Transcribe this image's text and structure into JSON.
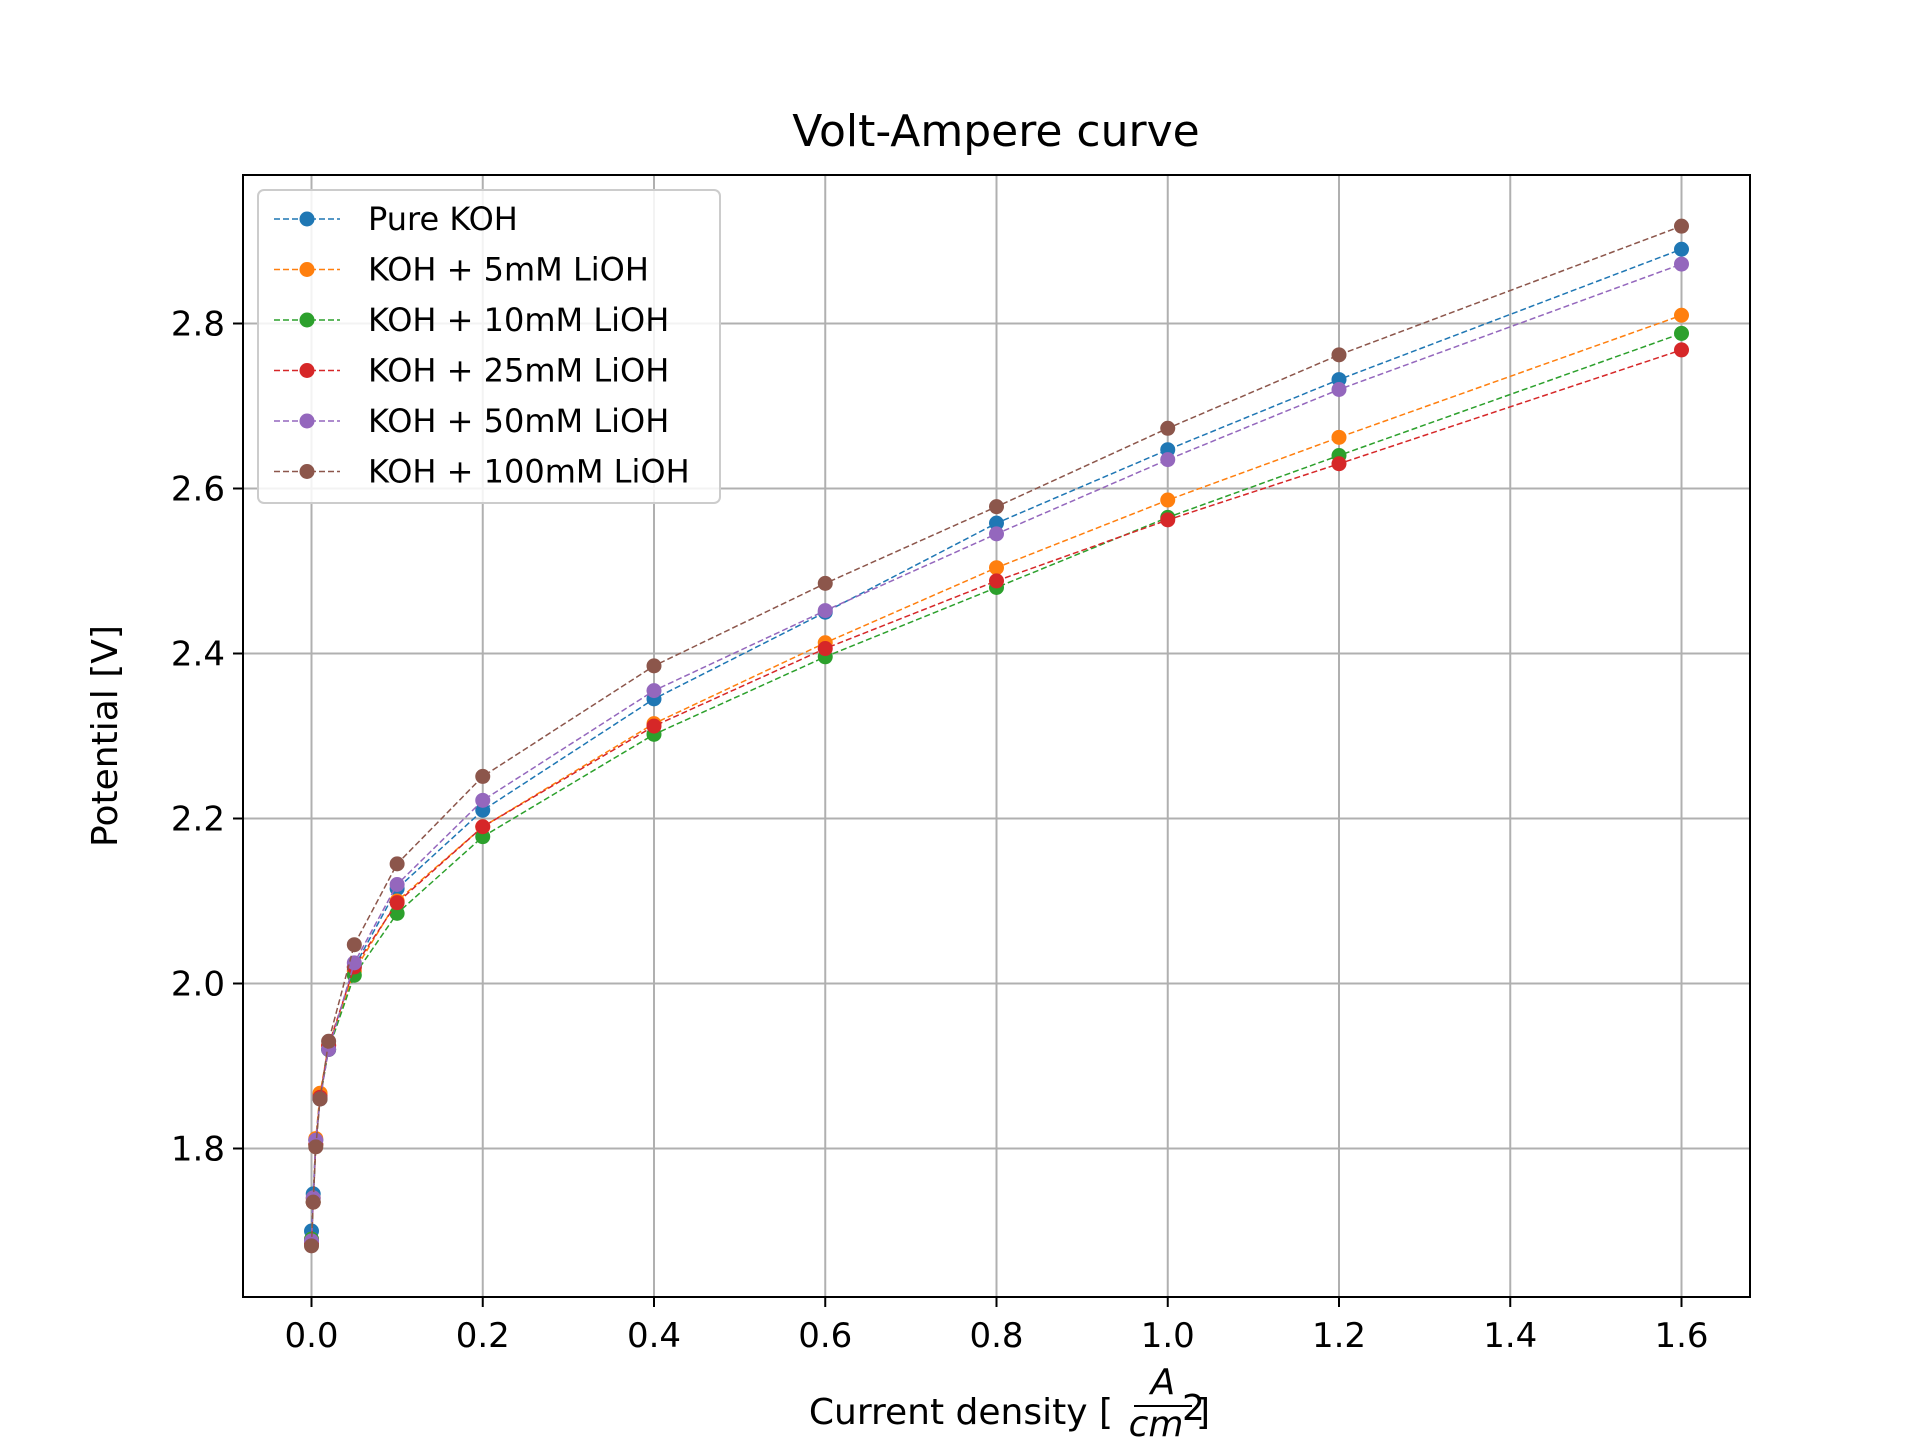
{
  "chart_data": {
    "type": "line",
    "title": "Volt-Ampere curve",
    "xlabel": "Current density [",
    "xlabel_frac_num": "A",
    "xlabel_frac_den": "cm",
    "xlabel_frac_sup": "2",
    "xlabel_close": "]",
    "ylabel": "Potential [V]",
    "xlim": [
      -0.08,
      1.68
    ],
    "ylim": [
      1.62,
      2.98
    ],
    "xticks": [
      0.0,
      0.2,
      0.4,
      0.6,
      0.8,
      1.0,
      1.2,
      1.4,
      1.6
    ],
    "xtick_labels": [
      "0.0",
      "0.2",
      "0.4",
      "0.6",
      "0.8",
      "1.0",
      "1.2",
      "1.4",
      "1.6"
    ],
    "yticks": [
      1.8,
      2.0,
      2.2,
      2.4,
      2.6,
      2.8
    ],
    "ytick_labels": [
      "1.8",
      "2.0",
      "2.2",
      "2.4",
      "2.6",
      "2.8"
    ],
    "grid": true,
    "legend_position": "top-left",
    "x": [
      0.0,
      0.002,
      0.005,
      0.01,
      0.02,
      0.05,
      0.1,
      0.2,
      0.4,
      0.6,
      0.8,
      1.0,
      1.2,
      1.6
    ],
    "series": [
      {
        "name": "Pure KOH",
        "color": "#1f77b4",
        "values": [
          1.7,
          1.745,
          1.81,
          1.865,
          1.92,
          2.02,
          2.115,
          2.21,
          2.345,
          2.45,
          2.558,
          2.647,
          2.732,
          2.89
        ]
      },
      {
        "name": "KOH + 5mM LiOH",
        "color": "#ff7f0e",
        "values": [
          1.69,
          1.74,
          1.812,
          1.867,
          1.925,
          2.015,
          2.1,
          2.19,
          2.315,
          2.413,
          2.504,
          2.586,
          2.662,
          2.81
        ]
      },
      {
        "name": "KOH + 10mM LiOH",
        "color": "#2ca02c",
        "values": [
          1.69,
          1.735,
          1.805,
          1.86,
          1.92,
          2.01,
          2.085,
          2.178,
          2.302,
          2.396,
          2.48,
          2.565,
          2.64,
          2.788
        ]
      },
      {
        "name": "KOH + 25mM LiOH",
        "color": "#d62728",
        "values": [
          1.685,
          1.735,
          1.805,
          1.862,
          1.925,
          2.02,
          2.098,
          2.19,
          2.312,
          2.406,
          2.488,
          2.562,
          2.63,
          2.768
        ]
      },
      {
        "name": "KOH + 50mM LiOH",
        "color": "#9467bd",
        "values": [
          1.688,
          1.74,
          1.81,
          1.86,
          1.92,
          2.025,
          2.12,
          2.222,
          2.355,
          2.452,
          2.545,
          2.635,
          2.72,
          2.872
        ]
      },
      {
        "name": "KOH + 100mM LiOH",
        "color": "#8c564b",
        "values": [
          1.682,
          1.735,
          1.802,
          1.86,
          1.93,
          2.047,
          2.145,
          2.251,
          2.385,
          2.485,
          2.578,
          2.673,
          2.762,
          2.918
        ]
      }
    ]
  }
}
